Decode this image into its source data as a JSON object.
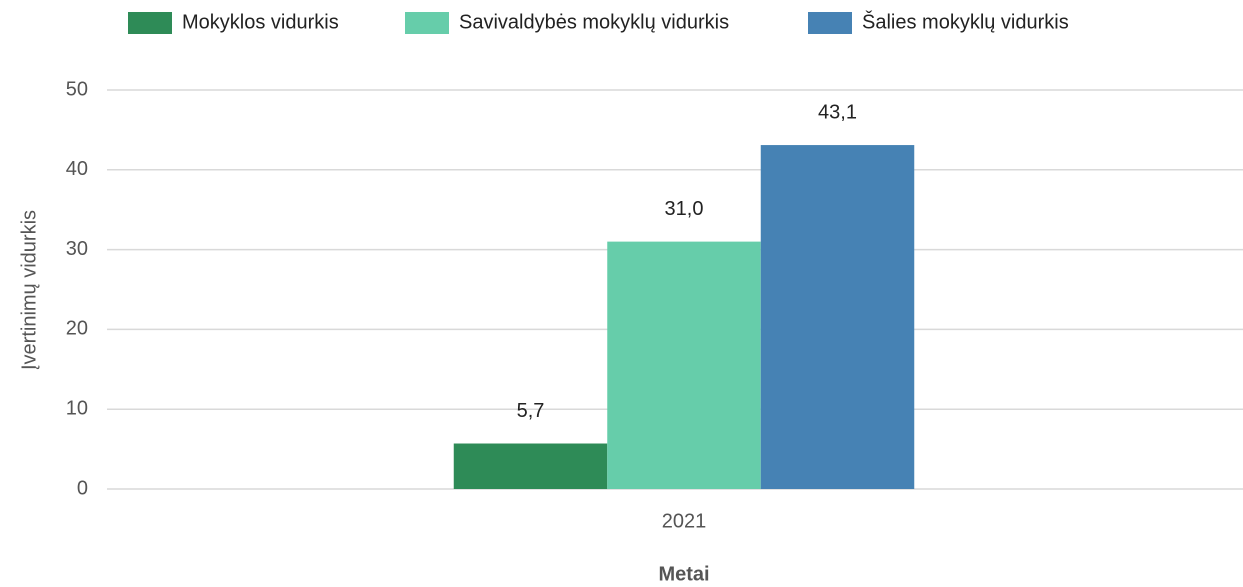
{
  "chart_data": {
    "type": "bar",
    "categories": [
      "2021"
    ],
    "series": [
      {
        "name": "Mokyklos vidurkis",
        "color": "#2e8b57",
        "values": [
          5.7
        ],
        "value_labels": [
          "5,7"
        ]
      },
      {
        "name": "Savivaldybės mokyklų vidurkis",
        "color": "#66cdaa",
        "values": [
          31.0
        ],
        "value_labels": [
          "31,0"
        ]
      },
      {
        "name": "Šalies mokyklų vidurkis",
        "color": "#4682b4",
        "values": [
          43.1
        ],
        "value_labels": [
          "43,1"
        ]
      }
    ],
    "ylabel": "Įvertinimų vidurkis",
    "xlabel": "Metai",
    "ylim": [
      0,
      50
    ],
    "yticks": [
      0,
      10,
      20,
      30,
      40,
      50
    ],
    "grid": true,
    "legend": "top"
  }
}
